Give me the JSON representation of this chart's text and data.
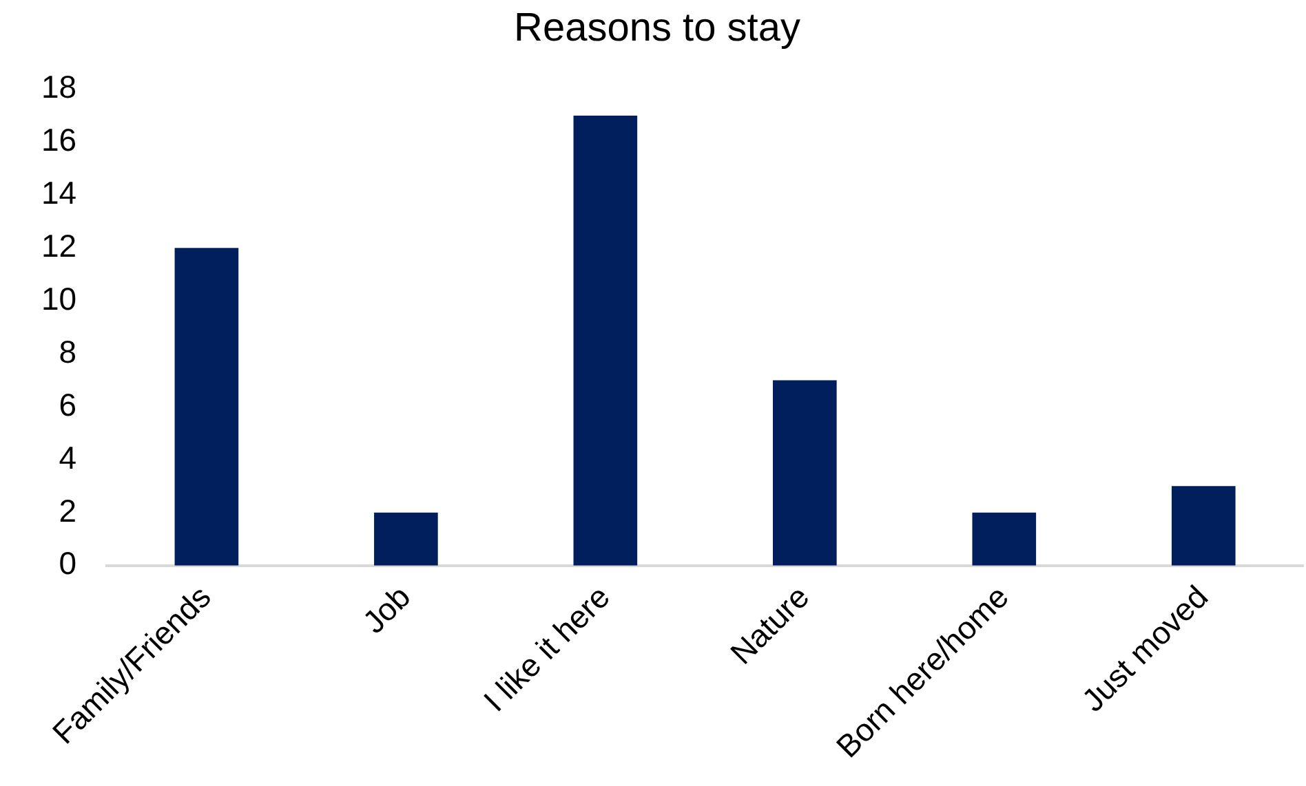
{
  "chart_data": {
    "type": "bar",
    "title": "Reasons to stay",
    "categories": [
      "Family/Friends",
      "Job",
      "I like it here",
      "Nature",
      "Born here/home",
      "Just moved"
    ],
    "values": [
      12,
      2,
      17,
      7,
      2,
      3
    ],
    "color": "#001f5c",
    "ylim": [
      0,
      18
    ],
    "yticks": [
      0,
      2,
      4,
      6,
      8,
      10,
      12,
      14,
      16,
      18
    ]
  }
}
